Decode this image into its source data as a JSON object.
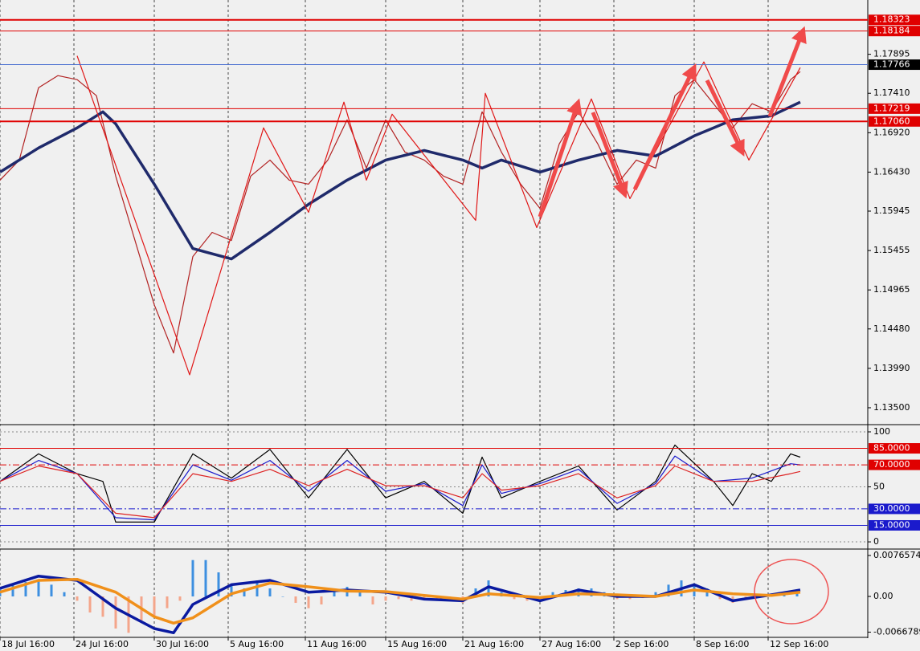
{
  "chart_data": [
    {
      "type": "line",
      "grid": false,
      "ylim": [
        1.133,
        1.1857
      ],
      "yticks": [
        1.17895,
        {
          "value": 1.1741,
          "label": "1.17410"
        },
        {
          "value": 1.1692,
          "label": "1.16920"
        },
        {
          "value": 1.1643,
          "label": "1.16430"
        },
        1.15945,
        1.15455,
        1.14965,
        {
          "value": 1.1448,
          "label": "1.14480"
        },
        {
          "value": 1.1399,
          "label": "1.13990"
        },
        {
          "value": 1.135,
          "label": "1.13500"
        }
      ],
      "levels": [
        {
          "value": 1.18323,
          "color": "#e00000",
          "style": "thick"
        },
        {
          "value": 1.18184,
          "color": "#e00000",
          "style": "solid"
        },
        {
          "value": 1.17766,
          "color": "#4a6fd0",
          "box_color": "#000000",
          "style": "solid"
        },
        {
          "value": 1.17219,
          "color": "#e00000",
          "style": "solid"
        },
        {
          "value": 1.1706,
          "label": "1.17060",
          "color": "#e00000",
          "style": "thick"
        }
      ],
      "series": [
        {
          "color": "#b22222",
          "weight": "normal",
          "x": [
            0,
            6,
            12,
            18,
            24,
            30,
            36,
            42,
            48,
            54,
            60,
            66,
            72,
            78,
            84,
            90,
            96,
            102,
            108,
            114,
            120,
            126,
            132,
            138,
            144,
            150,
            156,
            162,
            168,
            174,
            180,
            186,
            192,
            198,
            204,
            210,
            216,
            222,
            228,
            234,
            240,
            246,
            249
          ],
          "values": [
            1.1633,
            1.1658,
            1.1748,
            1.1763,
            1.1758,
            1.1738,
            1.1638,
            1.1558,
            1.1478,
            1.1418,
            1.1538,
            1.1568,
            1.1558,
            1.1638,
            1.1658,
            1.1633,
            1.1628,
            1.1658,
            1.1708,
            1.1648,
            1.1708,
            1.1668,
            1.1658,
            1.1638,
            1.1628,
            1.1718,
            1.1668,
            1.1628,
            1.1598,
            1.1678,
            1.1718,
            1.1678,
            1.1628,
            1.1658,
            1.1648,
            1.1738,
            1.1758,
            1.1728,
            1.1698,
            1.1728,
            1.1718,
            1.1758,
            1.1768
          ]
        },
        {
          "color": "#1f2a6b",
          "weight": "bold",
          "x": [
            0,
            12,
            24,
            32,
            36,
            48,
            60,
            72,
            84,
            96,
            108,
            120,
            132,
            144,
            150,
            156,
            168,
            180,
            192,
            204,
            216,
            228,
            240,
            249
          ],
          "values": [
            1.1643,
            1.1673,
            1.1698,
            1.1718,
            1.1703,
            1.1628,
            1.1548,
            1.1535,
            1.1568,
            1.1603,
            1.1633,
            1.1658,
            1.167,
            1.1658,
            1.1648,
            1.1658,
            1.1643,
            1.1658,
            1.167,
            1.1663,
            1.1688,
            1.1708,
            1.1713,
            1.173
          ]
        },
        {
          "color": "#e01818",
          "weight": "normal",
          "x": [
            24,
            59,
            82,
            96,
            107,
            114,
            122,
            148,
            151,
            167,
            184,
            196,
            219,
            233,
            249
          ],
          "values": [
            1.17875,
            1.1391,
            1.1698,
            1.1593,
            1.173,
            1.1633,
            1.1715,
            1.1583,
            1.1741,
            1.1574,
            1.1734,
            1.161,
            1.178,
            1.1658,
            1.1773
          ]
        }
      ]
    },
    {
      "type": "line",
      "grid": true,
      "ylim": [
        -5.8,
        105.1
      ],
      "yticks": [
        100,
        50,
        0
      ],
      "levels": [
        {
          "value": 85,
          "label": "85.0000",
          "color": "#e00000",
          "style": "solid"
        },
        {
          "value": 70,
          "label": "70.0000",
          "color": "#e00000",
          "style": "dashdot"
        },
        {
          "value": 30,
          "label": "30.0000",
          "color": "#1a1acc",
          "style": "dashdot"
        },
        {
          "value": 15,
          "label": "15.0000",
          "color": "#1a1acc",
          "style": "solid"
        }
      ],
      "series": [
        {
          "color": "#000000",
          "weight": "normal",
          "x": [
            0,
            12,
            24,
            32,
            36,
            48,
            60,
            72,
            84,
            96,
            108,
            120,
            132,
            144,
            150,
            156,
            168,
            180,
            192,
            204,
            210,
            222,
            228,
            234,
            240,
            246,
            249
          ],
          "values": [
            55,
            80,
            62,
            55,
            18,
            18,
            80,
            58,
            84,
            40,
            84,
            40,
            55,
            26,
            77,
            40,
            55,
            69,
            29,
            55,
            88,
            55,
            33,
            62,
            55,
            80,
            77
          ]
        },
        {
          "color": "#1a1acc",
          "weight": "normal",
          "x": [
            0,
            12,
            24,
            36,
            48,
            60,
            72,
            84,
            96,
            108,
            120,
            132,
            144,
            150,
            156,
            168,
            180,
            192,
            204,
            210,
            222,
            234,
            246,
            249
          ],
          "values": [
            55,
            74,
            62,
            22,
            20,
            70,
            56,
            74,
            46,
            74,
            46,
            53,
            33,
            70,
            44,
            53,
            66,
            35,
            53,
            78,
            55,
            58,
            71,
            70
          ]
        },
        {
          "color": "#dd2222",
          "weight": "normal",
          "x": [
            0,
            12,
            24,
            36,
            48,
            60,
            72,
            84,
            96,
            108,
            120,
            132,
            144,
            150,
            156,
            168,
            180,
            192,
            204,
            210,
            222,
            234,
            246,
            249
          ],
          "values": [
            55,
            69,
            62,
            26,
            22,
            62,
            55,
            66,
            51,
            66,
            51,
            51,
            40,
            62,
            47,
            51,
            62,
            40,
            51,
            69,
            55,
            55,
            62,
            64
          ]
        }
      ]
    },
    {
      "type": "combo",
      "grid": false,
      "ylim": [
        -0.0075,
        0.00856
      ],
      "yticks": [
        0.0076574,
        {
          "value": 0,
          "label": "0.00"
        },
        -0.0066789
      ],
      "xlim": [
        0,
        270
      ],
      "xticks": [
        {
          "value": 0,
          "label": "18 Jul 16:00"
        },
        {
          "value": 23,
          "label": "24 Jul 16:00"
        },
        {
          "value": 48,
          "label": "30 Jul 16:00"
        },
        {
          "value": 71,
          "label": "5 Aug 16:00"
        },
        {
          "value": 95,
          "label": "11 Aug 16:00"
        },
        {
          "value": 120,
          "label": "15 Aug 16:00"
        },
        {
          "value": 144,
          "label": "21 Aug 16:00"
        },
        {
          "value": 168,
          "label": "27 Aug 16:00"
        },
        {
          "value": 191,
          "label": "2 Sep 16:00"
        },
        {
          "value": 216,
          "label": "8 Sep 16:00"
        },
        {
          "value": 239,
          "label": "12 Sep 16:00"
        }
      ],
      "bars": {
        "pos_color": "#3d8fe0",
        "neg_color": "#f4a58a",
        "x": [
          0,
          4,
          8,
          12,
          16,
          20,
          24,
          28,
          32,
          36,
          40,
          44,
          48,
          52,
          56,
          60,
          64,
          68,
          72,
          76,
          80,
          84,
          88,
          92,
          96,
          100,
          104,
          108,
          112,
          116,
          120,
          124,
          128,
          132,
          136,
          140,
          144,
          148,
          152,
          156,
          160,
          164,
          168,
          172,
          176,
          180,
          184,
          188,
          192,
          196,
          200,
          204,
          208,
          212,
          216,
          220,
          224,
          228,
          232,
          236,
          240,
          244,
          248
        ],
        "values": [
          0.0015,
          0.0022,
          0.0027,
          0.003,
          0.0022,
          0.0008,
          -0.0008,
          -0.003,
          -0.0038,
          -0.006,
          -0.0068,
          -0.0045,
          -0.0038,
          -0.0022,
          -0.0008,
          0.0068,
          0.0068,
          0.0045,
          0.0022,
          0.0015,
          0.003,
          0.0015,
          0,
          -0.0012,
          -0.0022,
          -0.0015,
          0.0012,
          0.0018,
          0.0008,
          -0.0015,
          -0.0008,
          -0.0005,
          -0.0008,
          -0.0005,
          -0.0008,
          -0.0008,
          -0.0012,
          0.0015,
          0.003,
          0.0008,
          -0.0005,
          -0.0008,
          -0.0005,
          0.0008,
          0.0012,
          0.0015,
          0.0015,
          0.0008,
          -0.0005,
          -0.0005,
          -0.0003,
          0.0008,
          0.0022,
          0.003,
          0.0022,
          0.0015,
          -0.0005,
          -0.0012,
          -0.0005,
          0.0003,
          0.0005,
          0.0008,
          0.0012
        ]
      },
      "series": [
        {
          "color": "#0a1aa0",
          "weight": "bold",
          "x": [
            0,
            12,
            24,
            36,
            48,
            54,
            60,
            72,
            84,
            96,
            108,
            120,
            132,
            144,
            152,
            168,
            180,
            192,
            204,
            216,
            228,
            240,
            249
          ],
          "values": [
            0.0015,
            0.0038,
            0.003,
            -0.0022,
            -0.006,
            -0.0068,
            -0.0015,
            0.0022,
            0.003,
            0.0008,
            0.0012,
            0.0008,
            -0.0005,
            -0.0008,
            0.0018,
            -0.0008,
            0.0012,
            0,
            0,
            0.0022,
            -0.0008,
            0.0003,
            0.0012
          ]
        },
        {
          "color": "#f0901a",
          "weight": "bold",
          "x": [
            0,
            12,
            24,
            36,
            48,
            54,
            60,
            72,
            84,
            96,
            108,
            120,
            132,
            144,
            152,
            168,
            180,
            192,
            204,
            216,
            228,
            240,
            249
          ],
          "values": [
            0.0008,
            0.003,
            0.0032,
            0.0008,
            -0.0038,
            -0.005,
            -0.004,
            0.0005,
            0.0025,
            0.0018,
            0.001,
            0.0009,
            0.0002,
            -0.0005,
            0.0005,
            -0.0002,
            0.0005,
            0.0003,
            0,
            0.0012,
            0.0005,
            0.0002,
            0.0008
          ]
        }
      ]
    }
  ]
}
